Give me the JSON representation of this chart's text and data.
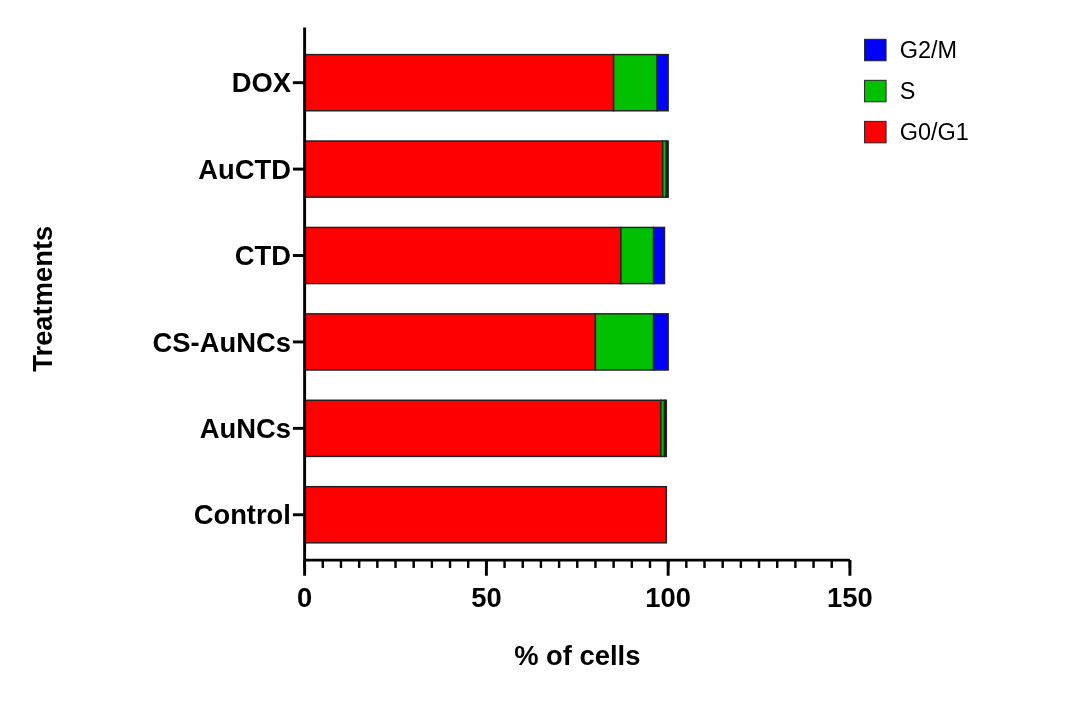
{
  "chart_data": {
    "type": "bar",
    "orientation": "horizontal",
    "stacked": true,
    "xlabel": "% of cells",
    "ylabel": "Treatments",
    "categories": [
      "DOX",
      "AuCTD",
      "CTD",
      "CS-AuNCs",
      "AuNCs",
      "Control"
    ],
    "series": [
      {
        "name": "G0/G1",
        "color": "#ff0000",
        "values": [
          85,
          98.5,
          87,
          80,
          98,
          99.5
        ]
      },
      {
        "name": "S",
        "color": "#00c000",
        "values": [
          12,
          1,
          9,
          16,
          1,
          0
        ]
      },
      {
        "name": "G2/M",
        "color": "#0000ff",
        "values": [
          3,
          0.5,
          3,
          4,
          0.5,
          0
        ]
      }
    ],
    "xlim": [
      0,
      150
    ],
    "xticks": [
      0,
      50,
      100,
      150
    ],
    "grid": false,
    "legend": "top right"
  }
}
